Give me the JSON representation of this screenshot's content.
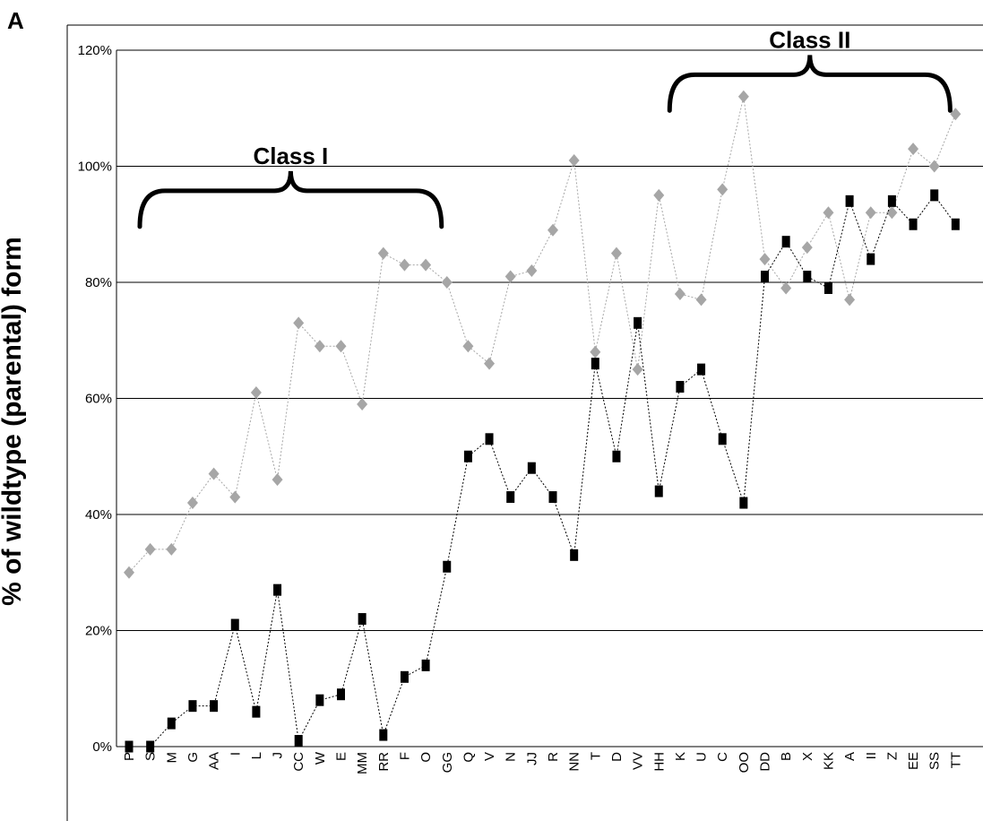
{
  "figure": {
    "panel_label": "A"
  },
  "chart_data": {
    "type": "line",
    "title": "",
    "xlabel": "",
    "ylabel": "% of wildtype  (parental) form",
    "ylim": [
      0,
      120
    ],
    "yticks": [
      0,
      20,
      40,
      60,
      80,
      100,
      120
    ],
    "ytick_labels": [
      "0%",
      "20%",
      "40%",
      "60%",
      "80%",
      "100%",
      "120%"
    ],
    "grid": "horizontal",
    "categories": [
      "P",
      "S",
      "M",
      "G",
      "AA",
      "I",
      "L",
      "J",
      "CC",
      "W",
      "E",
      "MM",
      "RR",
      "F",
      "O",
      "GG",
      "Q",
      "V",
      "N",
      "JJ",
      "R",
      "NN",
      "T",
      "D",
      "VV",
      "HH",
      "K",
      "U",
      "C",
      "OO",
      "DD",
      "B",
      "X",
      "KK",
      "A",
      "II",
      "Z",
      "EE",
      "SS",
      "TT"
    ],
    "series": [
      {
        "color": "#a6a6a6",
        "marker": "diamond",
        "values": [
          30,
          34,
          34,
          42,
          47,
          43,
          61,
          46,
          73,
          69,
          69,
          59,
          85,
          83,
          83,
          80,
          69,
          66,
          81,
          82,
          89,
          101,
          68,
          85,
          65,
          95,
          78,
          77,
          96,
          112,
          84,
          79,
          86,
          92,
          77,
          92,
          92,
          103,
          100,
          109
        ]
      },
      {
        "color": "#000000",
        "marker": "square",
        "values": [
          0,
          0,
          4,
          7,
          7,
          21,
          6,
          27,
          1,
          8,
          9,
          22,
          2,
          12,
          14,
          31,
          50,
          53,
          43,
          48,
          43,
          33,
          66,
          50,
          73,
          44,
          62,
          65,
          53,
          42,
          81,
          87,
          81,
          79,
          94,
          84,
          94,
          90,
          95,
          90
        ]
      }
    ],
    "annotations": [
      {
        "text": "Class I",
        "from": "P",
        "to": "GG",
        "value": 93
      },
      {
        "text": "Class II",
        "from": "HH",
        "to": "TT",
        "value": 113
      }
    ]
  }
}
